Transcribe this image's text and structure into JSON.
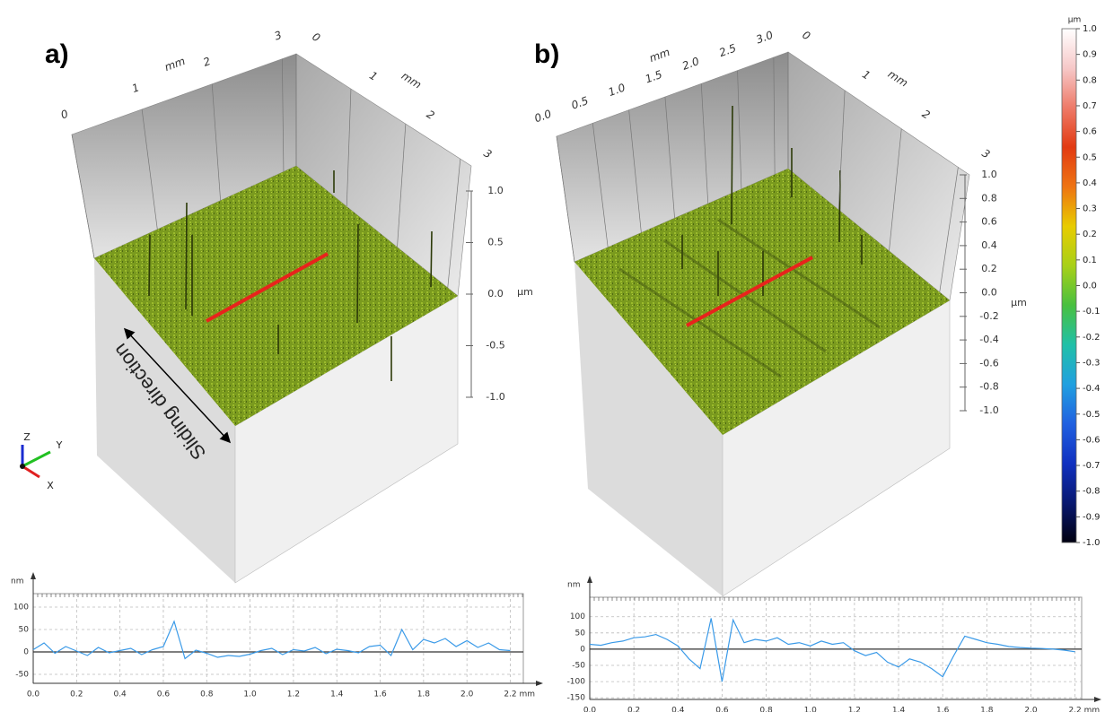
{
  "chart_data": [
    {
      "type": "surface3d",
      "panel_label": "a)",
      "xlabel": "mm",
      "ylabel": "mm",
      "zlabel": "µm",
      "xlim": [
        0,
        3.2
      ],
      "xticks": [
        0,
        1,
        2,
        3
      ],
      "ylim": [
        0,
        3.2
      ],
      "yticks": [
        0,
        1,
        2,
        3
      ],
      "zlim": [
        -1,
        1
      ],
      "zticks": [
        {
          "value": 1,
          "label": "1.0"
        },
        {
          "value": 0.5,
          "label": "0.5"
        },
        {
          "value": 0,
          "label": "0.0"
        },
        {
          "value": -0.5,
          "label": "-0.5"
        },
        {
          "value": -1,
          "label": "-1.0"
        }
      ],
      "annotation": "Sliding direction",
      "axis_triad": [
        "Z",
        "Y",
        "X"
      ]
    },
    {
      "type": "surface3d",
      "panel_label": "b)",
      "xlabel": "mm",
      "ylabel": "mm",
      "zlabel": "µm",
      "xlim": [
        0,
        3.2
      ],
      "xticks": [
        {
          "value": 0,
          "label": "0.0"
        },
        {
          "value": 0.5,
          "label": "0.5"
        },
        {
          "value": 1,
          "label": "1.0"
        },
        {
          "value": 1.5,
          "label": "1.5"
        },
        {
          "value": 2,
          "label": "2.0"
        },
        {
          "value": 2.5,
          "label": "2.5"
        },
        {
          "value": 3,
          "label": "3.0"
        }
      ],
      "ylim": [
        0,
        3.2
      ],
      "yticks": [
        0,
        1,
        2,
        3
      ],
      "zlim": [
        -1,
        1
      ],
      "zticks": [
        {
          "value": 1,
          "label": "1.0"
        },
        {
          "value": 0.8,
          "label": "0.8"
        },
        {
          "value": 0.6,
          "label": "0.6"
        },
        {
          "value": 0.4,
          "label": "0.4"
        },
        {
          "value": 0.2,
          "label": "0.2"
        },
        {
          "value": 0,
          "label": "0.0"
        },
        {
          "value": -0.2,
          "label": "-0.2"
        },
        {
          "value": -0.4,
          "label": "-0.4"
        },
        {
          "value": -0.6,
          "label": "-0.6"
        },
        {
          "value": -0.8,
          "label": "-0.8"
        },
        {
          "value": -1,
          "label": "-1.0"
        }
      ]
    },
    {
      "type": "colorbar",
      "unit": "µm",
      "ylim": [
        -1,
        1
      ],
      "yticks": [
        {
          "value": 1,
          "label": "1.0"
        },
        0.9,
        0.8,
        0.7,
        0.6,
        0.5,
        0.4,
        0.3,
        0.2,
        0.1,
        {
          "value": 0,
          "label": "0.0"
        },
        -0.1,
        -0.2,
        -0.3,
        -0.4,
        -0.5,
        -0.6,
        -0.7,
        -0.8,
        -0.9,
        {
          "value": -1,
          "label": "-1.0"
        }
      ],
      "colors": [
        "#ffffff",
        "#f6c8c8",
        "#ee7a68",
        "#e23a12",
        "#ee7412",
        "#e8cc00",
        "#a8d018",
        "#48c040",
        "#20c0a8",
        "#20a0e0",
        "#2060e0",
        "#1030c0",
        "#081870",
        "#000010"
      ]
    },
    {
      "type": "line",
      "ylabel": "nm",
      "xlabel": "mm",
      "color": "#3a9ae8",
      "grid": true,
      "xlim": [
        0,
        2.26
      ],
      "ylim": [
        -70,
        130
      ],
      "xticks": [
        {
          "value": 0,
          "label": "0.0"
        },
        {
          "value": 0.2,
          "label": "0.2"
        },
        {
          "value": 0.4,
          "label": "0.4"
        },
        {
          "value": 0.6,
          "label": "0.6"
        },
        {
          "value": 0.8,
          "label": "0.8"
        },
        {
          "value": 1,
          "label": "1.0"
        },
        {
          "value": 1.2,
          "label": "1.2"
        },
        {
          "value": 1.4,
          "label": "1.4"
        },
        {
          "value": 1.6,
          "label": "1.6"
        },
        {
          "value": 1.8,
          "label": "1.8"
        },
        {
          "value": 2,
          "label": "2.0"
        },
        {
          "value": 2.2,
          "label": "2.2"
        }
      ],
      "yticks": [
        100,
        50,
        0,
        -50
      ],
      "x": [
        0,
        0.05,
        0.1,
        0.15,
        0.2,
        0.25,
        0.3,
        0.35,
        0.4,
        0.45,
        0.5,
        0.55,
        0.6,
        0.65,
        0.7,
        0.75,
        0.8,
        0.85,
        0.9,
        0.95,
        1,
        1.05,
        1.1,
        1.15,
        1.2,
        1.25,
        1.3,
        1.35,
        1.4,
        1.45,
        1.5,
        1.55,
        1.6,
        1.65,
        1.7,
        1.75,
        1.8,
        1.85,
        1.9,
        1.95,
        2,
        2.05,
        2.1,
        2.15,
        2.2
      ],
      "values": [
        5,
        20,
        -3,
        12,
        2,
        -8,
        10,
        -2,
        3,
        8,
        -6,
        5,
        12,
        68,
        -15,
        4,
        -3,
        -12,
        -8,
        -10,
        -5,
        3,
        8,
        -6,
        5,
        2,
        10,
        -4,
        6,
        3,
        -2,
        12,
        15,
        -8,
        50,
        5,
        28,
        20,
        30,
        12,
        25,
        10,
        20,
        5,
        3
      ]
    },
    {
      "type": "line",
      "ylabel": "nm",
      "xlabel": "mm",
      "color": "#3a9ae8",
      "grid": true,
      "xlim": [
        0,
        2.23
      ],
      "ylim": [
        -155,
        160
      ],
      "xticks": [
        {
          "value": 0,
          "label": "0.0"
        },
        {
          "value": 0.2,
          "label": "0.2"
        },
        {
          "value": 0.4,
          "label": "0.4"
        },
        {
          "value": 0.6,
          "label": "0.6"
        },
        {
          "value": 0.8,
          "label": "0.8"
        },
        {
          "value": 1,
          "label": "1.0"
        },
        {
          "value": 1.2,
          "label": "1.2"
        },
        {
          "value": 1.4,
          "label": "1.4"
        },
        {
          "value": 1.6,
          "label": "1.6"
        },
        {
          "value": 1.8,
          "label": "1.8"
        },
        {
          "value": 2,
          "label": "2.0"
        },
        {
          "value": 2.2,
          "label": "2.2"
        }
      ],
      "yticks": [
        100,
        50,
        0,
        -50,
        -100,
        -150
      ],
      "x": [
        0,
        0.05,
        0.1,
        0.15,
        0.2,
        0.25,
        0.3,
        0.35,
        0.4,
        0.45,
        0.5,
        0.55,
        0.6,
        0.65,
        0.7,
        0.75,
        0.8,
        0.85,
        0.9,
        0.95,
        1,
        1.05,
        1.1,
        1.15,
        1.2,
        1.25,
        1.3,
        1.35,
        1.4,
        1.45,
        1.5,
        1.55,
        1.6,
        1.65,
        1.7,
        1.75,
        1.8,
        1.85,
        1.9,
        1.95,
        2,
        2.05,
        2.1,
        2.15,
        2.2
      ],
      "values": [
        15,
        12,
        20,
        25,
        35,
        38,
        45,
        30,
        10,
        -30,
        -60,
        95,
        -100,
        90,
        20,
        30,
        25,
        35,
        15,
        20,
        10,
        25,
        15,
        20,
        -5,
        -20,
        -10,
        -40,
        -55,
        -30,
        -40,
        -60,
        -85,
        -20,
        40,
        30,
        20,
        15,
        8,
        5,
        3,
        2,
        0,
        -3,
        -8
      ]
    }
  ]
}
